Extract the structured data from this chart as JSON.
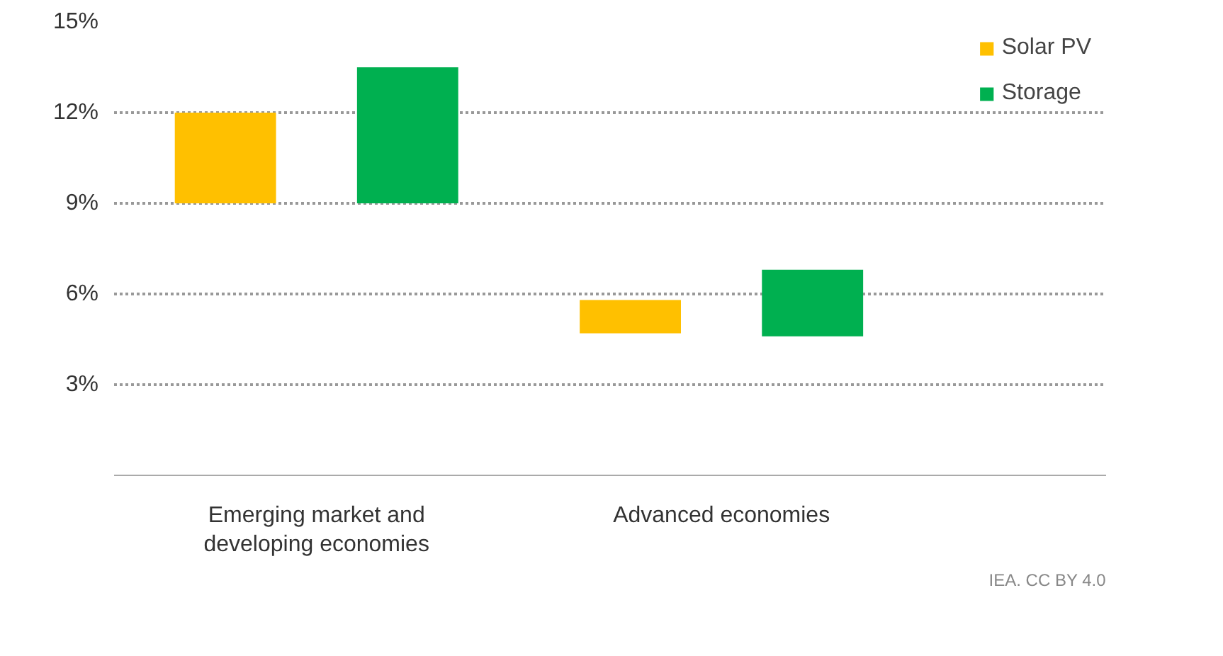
{
  "chart_data": {
    "type": "bar",
    "categories": [
      "Emerging market and developing economies",
      "Advanced economies"
    ],
    "series": [
      {
        "name": "Solar PV",
        "color": "#ffc000",
        "base": [
          9,
          4.7
        ],
        "values": [
          3,
          1.1
        ]
      },
      {
        "name": "Storage",
        "color": "#00b050",
        "base": [
          9,
          4.6
        ],
        "values": [
          4.5,
          2.2
        ]
      }
    ],
    "ylim": [
      0,
      15
    ],
    "yticks": [
      {
        "value": 3,
        "label": "3%"
      },
      {
        "value": 6,
        "label": "6%"
      },
      {
        "value": 9,
        "label": "9%"
      },
      {
        "value": 12,
        "label": "12%"
      },
      {
        "value": 15,
        "label": "15%"
      }
    ],
    "grid": "y",
    "legend": "top right",
    "annotations": [
      "IEA. CC BY 4.0"
    ]
  }
}
